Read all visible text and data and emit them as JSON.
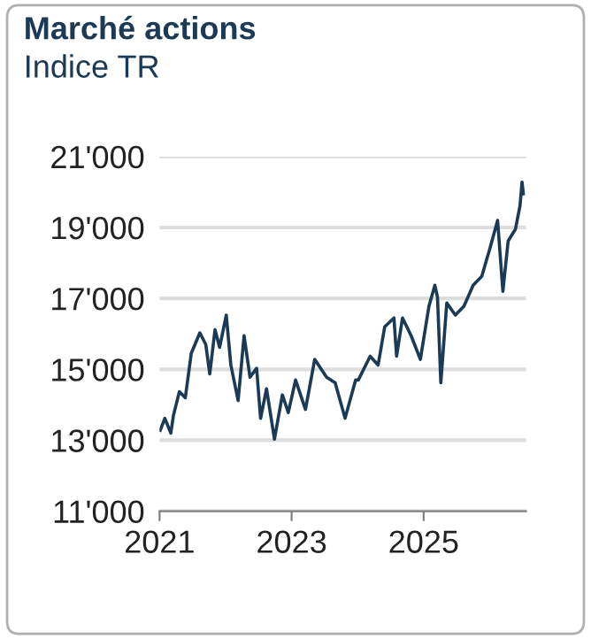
{
  "chart_data": {
    "type": "line",
    "title": "Marché actions",
    "subtitle": "Indice TR",
    "x": [
      2021.01,
      2021.08,
      2021.17,
      2021.21,
      2021.3,
      2021.39,
      2021.48,
      2021.61,
      2021.7,
      2021.76,
      2021.84,
      2021.91,
      2022.01,
      2022.08,
      2022.19,
      2022.28,
      2022.37,
      2022.47,
      2022.53,
      2022.62,
      2022.74,
      2022.86,
      2022.95,
      2023.06,
      2023.21,
      2023.35,
      2023.53,
      2023.66,
      2023.81,
      2023.97,
      2024.01,
      2024.19,
      2024.31,
      2024.41,
      2024.55,
      2024.59,
      2024.68,
      2024.81,
      2024.95,
      2025.08,
      2025.17,
      2025.21,
      2025.26,
      2025.35,
      2025.48,
      2025.61,
      2025.75,
      2025.88,
      2026.01,
      2026.12,
      2026.2,
      2026.28,
      2026.39,
      2026.46,
      2026.49,
      2026.51
    ],
    "series": [
      {
        "color": "#1b3a56",
        "values": [
          13280,
          13620,
          13200,
          13700,
          14370,
          14200,
          15450,
          16030,
          15700,
          14870,
          16120,
          15620,
          16530,
          15120,
          14120,
          15950,
          14780,
          15030,
          13620,
          14450,
          13030,
          14280,
          13780,
          14700,
          13870,
          15280,
          14780,
          14620,
          13620,
          14700,
          14700,
          15370,
          15120,
          16200,
          16450,
          15370,
          16450,
          15950,
          15280,
          16780,
          17370,
          17030,
          14620,
          16870,
          16530,
          16780,
          17370,
          17620,
          18450,
          19200,
          17200,
          18620,
          18950,
          19620,
          20280,
          19950
        ]
      }
    ],
    "xlim": [
      2021,
      2026.55
    ],
    "xticks": [
      2021,
      2023,
      2025
    ],
    "ylim": [
      11000,
      21000
    ],
    "yticks": [
      {
        "value": 11000,
        "label": "11'000"
      },
      {
        "value": 13000,
        "label": "13'000"
      },
      {
        "value": 15000,
        "label": "15'000"
      },
      {
        "value": 17000,
        "label": "17'000"
      },
      {
        "value": 19000,
        "label": "19'000"
      },
      {
        "value": 21000,
        "label": "21'000"
      }
    ],
    "grid": "y",
    "legend": false,
    "marker": "none",
    "line_style": "solid"
  }
}
